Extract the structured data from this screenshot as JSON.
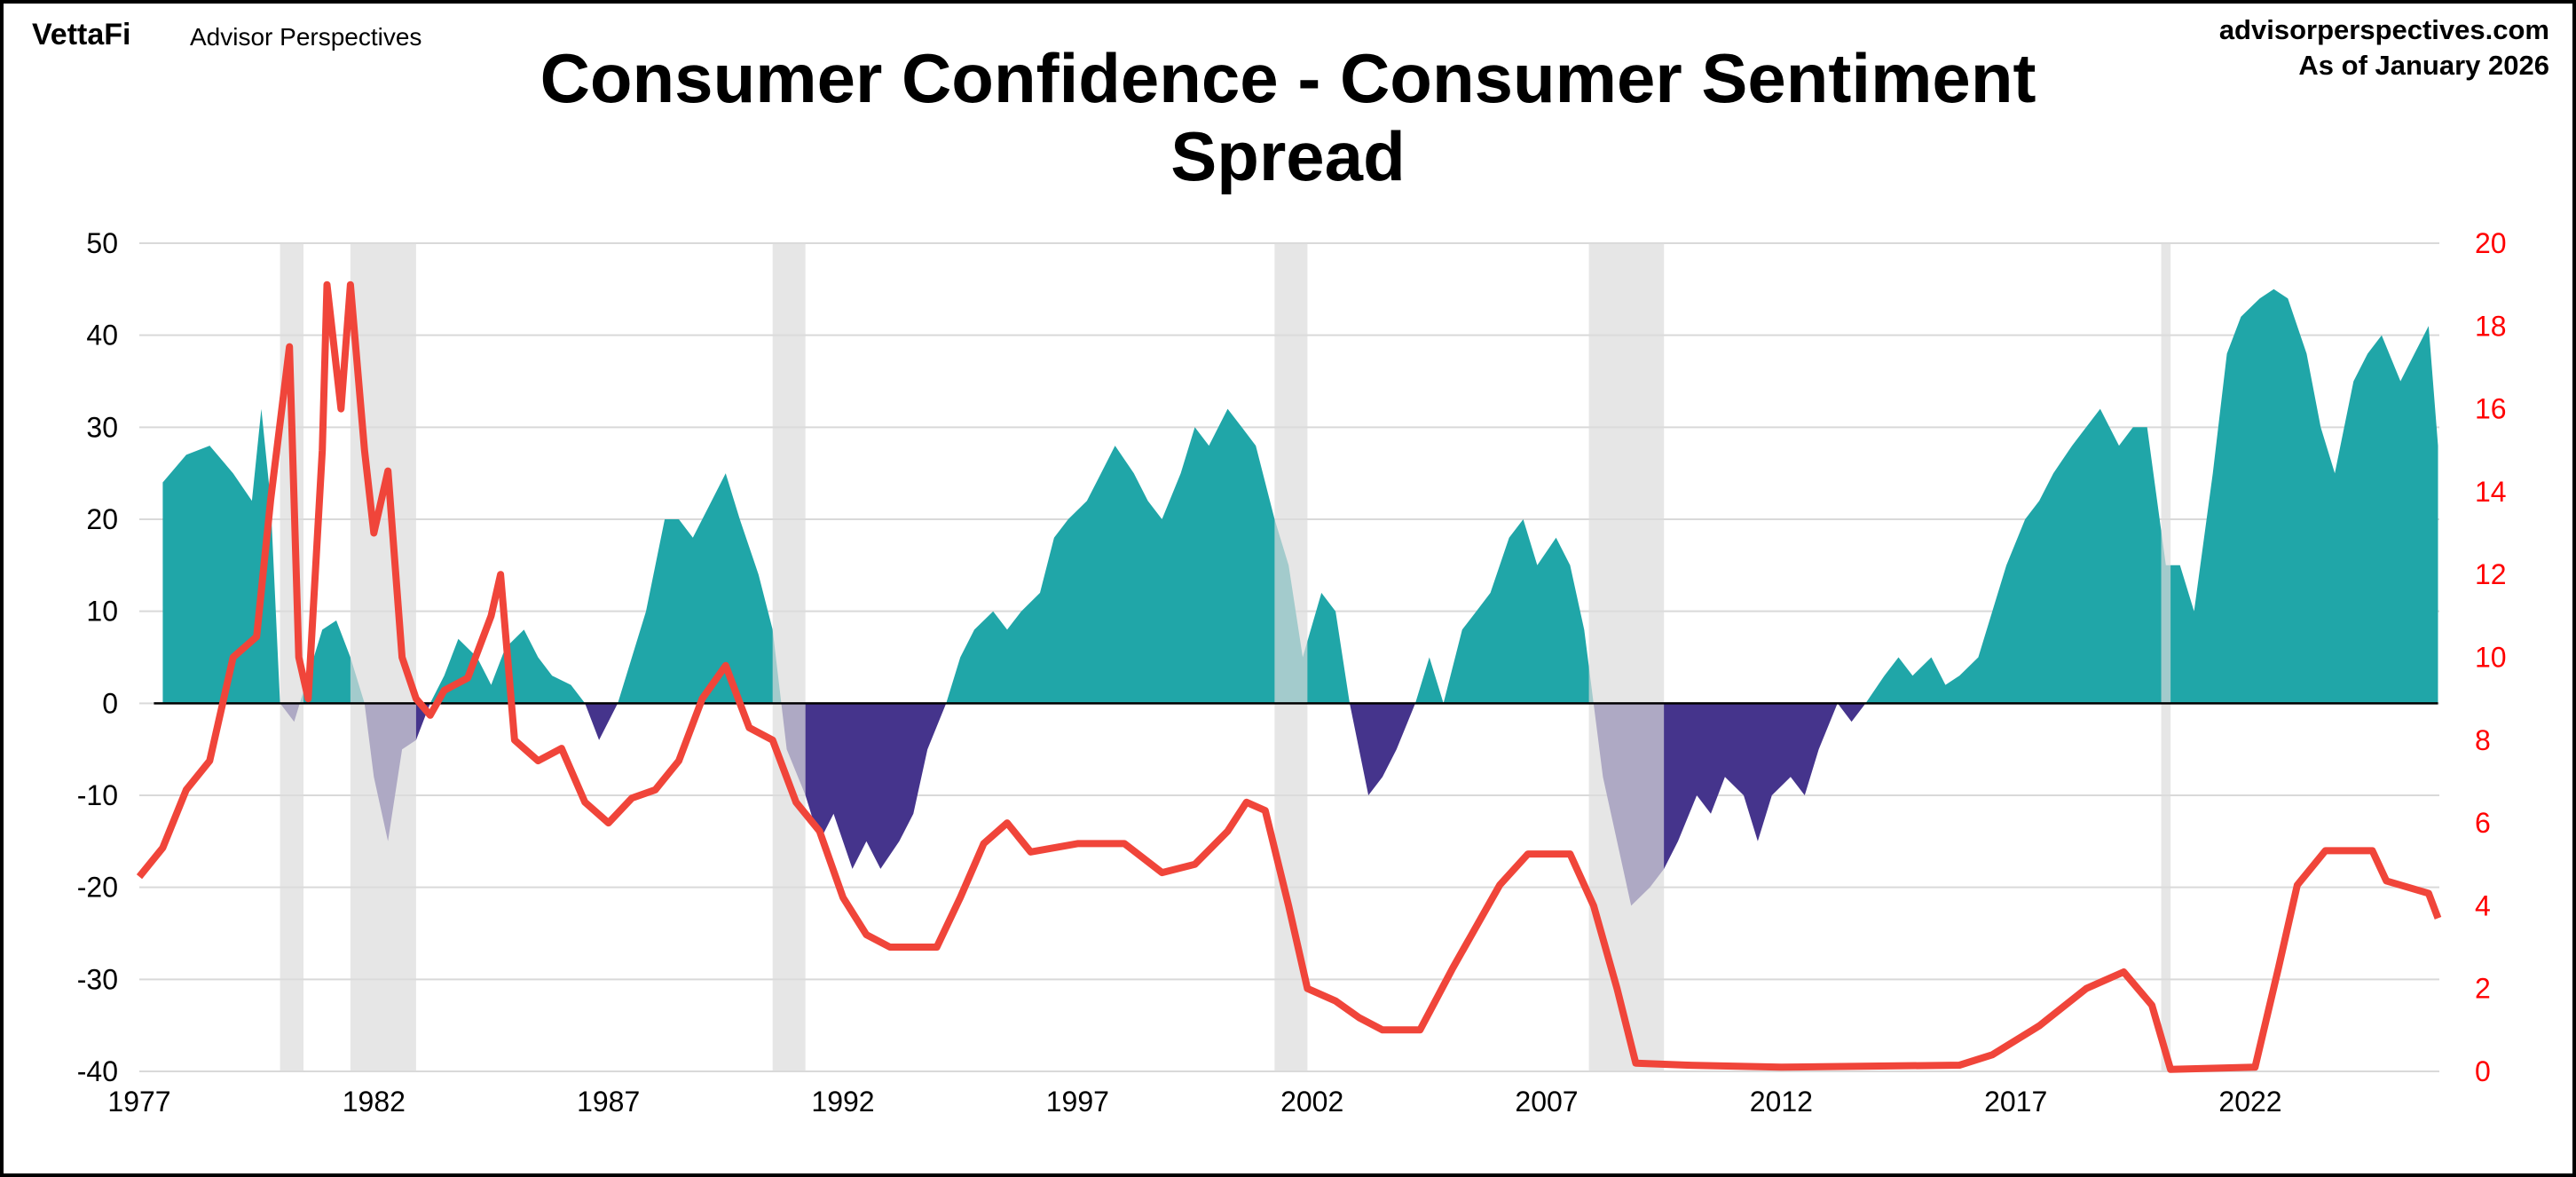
{
  "header": {
    "logo": "VettaFi",
    "brand": "Advisor Perspectives",
    "site": "advisorperspectives.com",
    "as_of": "As of January 2026"
  },
  "chart_data": {
    "type": "area",
    "title": "Consumer Confidence - Consumer Sentiment Spread",
    "title_lines": [
      "Consumer Confidence - Consumer Sentiment",
      "Spread"
    ],
    "xlim": [
      1977,
      2026
    ],
    "ylim_left": [
      -40,
      50
    ],
    "ylim_right": [
      0,
      20
    ],
    "x_ticks": [
      "1977",
      "1982",
      "1987",
      "1992",
      "1997",
      "2002",
      "2007",
      "2012",
      "2017",
      "2022"
    ],
    "y_ticks_left": [
      "50",
      "40",
      "30",
      "20",
      "10",
      "0",
      "-10",
      "-20",
      "-30",
      "-40"
    ],
    "y_ticks_right": [
      "20",
      "18",
      "16",
      "14",
      "12",
      "10",
      "8",
      "6",
      "4",
      "2",
      "0"
    ],
    "grid": true,
    "colors": {
      "positive": "#20a6a8",
      "negative": "#45348c",
      "line": "#f0453a",
      "recession": "#dcdcdc",
      "right_axis": "#ff0000"
    },
    "recessions": [
      [
        1980.0,
        1980.5
      ],
      [
        1981.5,
        1982.9
      ],
      [
        1990.5,
        1991.2
      ],
      [
        2001.2,
        2001.9
      ],
      [
        2007.9,
        2009.5
      ],
      [
        2020.1,
        2020.3
      ]
    ],
    "spread": {
      "x": [
        1977.5,
        1978,
        1978.5,
        1979,
        1979.4,
        1979.6,
        1979.8,
        1980,
        1980.3,
        1980.6,
        1980.9,
        1981.2,
        1981.5,
        1981.8,
        1982,
        1982.3,
        1982.6,
        1982.9,
        1983.2,
        1983.5,
        1983.8,
        1984.2,
        1984.5,
        1984.8,
        1985.2,
        1985.5,
        1985.8,
        1986.2,
        1986.5,
        1986.8,
        1987.2,
        1987.5,
        1987.8,
        1988.2,
        1988.5,
        1988.8,
        1989.2,
        1989.5,
        1989.8,
        1990.2,
        1990.5,
        1990.8,
        1991.2,
        1991.5,
        1991.8,
        1992.2,
        1992.5,
        1992.8,
        1993.2,
        1993.5,
        1993.8,
        1994.2,
        1994.5,
        1994.8,
        1995.2,
        1995.5,
        1995.8,
        1996.2,
        1996.5,
        1996.8,
        1997.2,
        1997.5,
        1997.8,
        1998.2,
        1998.5,
        1998.8,
        1999.2,
        1999.5,
        1999.8,
        2000.2,
        2000.5,
        2000.8,
        2001.2,
        2001.5,
        2001.8,
        2002.2,
        2002.5,
        2002.8,
        2003.2,
        2003.5,
        2003.8,
        2004.2,
        2004.5,
        2004.8,
        2005.2,
        2005.5,
        2005.8,
        2006.2,
        2006.5,
        2006.8,
        2007.2,
        2007.5,
        2007.8,
        2008.2,
        2008.5,
        2008.8,
        2009.2,
        2009.5,
        2009.8,
        2010.2,
        2010.5,
        2010.8,
        2011.2,
        2011.5,
        2011.8,
        2012.2,
        2012.5,
        2012.8,
        2013.2,
        2013.5,
        2013.8,
        2014.2,
        2014.5,
        2014.8,
        2015.2,
        2015.5,
        2015.8,
        2016.2,
        2016.5,
        2016.8,
        2017.2,
        2017.5,
        2017.8,
        2018.2,
        2018.5,
        2018.8,
        2019.2,
        2019.5,
        2019.8,
        2020.2,
        2020.5,
        2020.8,
        2021.2,
        2021.5,
        2021.8,
        2022.2,
        2022.5,
        2022.8,
        2023.2,
        2023.5,
        2023.8,
        2024.2,
        2024.5,
        2024.8,
        2025.2,
        2025.5,
        2025.8,
        2026
      ],
      "values": [
        24,
        27,
        28,
        25,
        22,
        32,
        22,
        0,
        -2,
        3,
        8,
        9,
        5,
        0,
        -8,
        -15,
        -5,
        -4,
        0,
        3,
        7,
        5,
        2,
        6,
        8,
        5,
        3,
        2,
        0,
        -4,
        0,
        5,
        10,
        20,
        20,
        18,
        22,
        25,
        20,
        14,
        8,
        -5,
        -10,
        -15,
        -12,
        -18,
        -15,
        -18,
        -15,
        -12,
        -5,
        0,
        5,
        8,
        10,
        8,
        10,
        12,
        18,
        20,
        22,
        25,
        28,
        25,
        22,
        20,
        25,
        30,
        28,
        32,
        30,
        28,
        20,
        15,
        5,
        12,
        10,
        0,
        -10,
        -8,
        -5,
        0,
        5,
        0,
        8,
        10,
        12,
        18,
        20,
        15,
        18,
        15,
        8,
        -8,
        -15,
        -22,
        -20,
        -18,
        -15,
        -10,
        -12,
        -8,
        -10,
        -15,
        -10,
        -8,
        -10,
        -5,
        0,
        -2,
        0,
        3,
        5,
        3,
        5,
        2,
        3,
        5,
        10,
        15,
        20,
        22,
        25,
        28,
        30,
        32,
        28,
        30,
        30,
        15,
        15,
        10,
        25,
        38,
        42,
        44,
        45,
        44,
        38,
        30,
        25,
        35,
        38,
        40,
        35,
        38,
        41,
        28
      ]
    },
    "rate": {
      "x": [
        1977,
        1977.5,
        1978,
        1978.5,
        1979,
        1979.5,
        1979.8,
        1980.2,
        1980.4,
        1980.6,
        1980.9,
        1981.0,
        1981.3,
        1981.5,
        1981.8,
        1982.0,
        1982.3,
        1982.6,
        1982.9,
        1983.2,
        1983.5,
        1984,
        1984.5,
        1984.7,
        1985,
        1985.5,
        1986,
        1986.5,
        1987,
        1987.5,
        1988,
        1988.5,
        1989,
        1989.5,
        1990,
        1990.5,
        1991,
        1991.5,
        1992,
        1992.5,
        1993,
        1994,
        1994.5,
        1995,
        1995.5,
        1996,
        1997,
        1998,
        1998.8,
        1999.5,
        2000.2,
        2000.6,
        2001,
        2001.5,
        2001.9,
        2002.5,
        2003,
        2003.5,
        2004.3,
        2005,
        2006,
        2006.6,
        2007.5,
        2008,
        2008.5,
        2008.9,
        2010,
        2012,
        2015.8,
        2016.5,
        2017.5,
        2018.5,
        2019.3,
        2019.9,
        2020.3,
        2022.1,
        2022.6,
        2023.0,
        2023.6,
        2024.6,
        2024.9,
        2025.8,
        2026
      ],
      "values": [
        4.7,
        5.4,
        6.8,
        7.5,
        10,
        10.5,
        13.8,
        17.5,
        10,
        9,
        15,
        19,
        16,
        19,
        15,
        13,
        14.5,
        10,
        9,
        8.6,
        9.2,
        9.5,
        11,
        12,
        8,
        7.5,
        7.8,
        6.5,
        6,
        6.6,
        6.8,
        7.5,
        9,
        9.8,
        8.3,
        8.0,
        6.5,
        5.8,
        4.2,
        3.3,
        3.0,
        3.0,
        4.2,
        5.5,
        6,
        5.3,
        5.5,
        5.5,
        4.8,
        5,
        5.8,
        6.5,
        6.3,
        4,
        2,
        1.7,
        1.3,
        1,
        1,
        2.5,
        4.5,
        5.25,
        5.25,
        4,
        2,
        0.2,
        0.15,
        0.1,
        0.15,
        0.4,
        1.1,
        2,
        2.4,
        1.6,
        0.05,
        0.1,
        2.5,
        4.5,
        5.33,
        5.33,
        4.6,
        4.3,
        3.7
      ]
    }
  }
}
